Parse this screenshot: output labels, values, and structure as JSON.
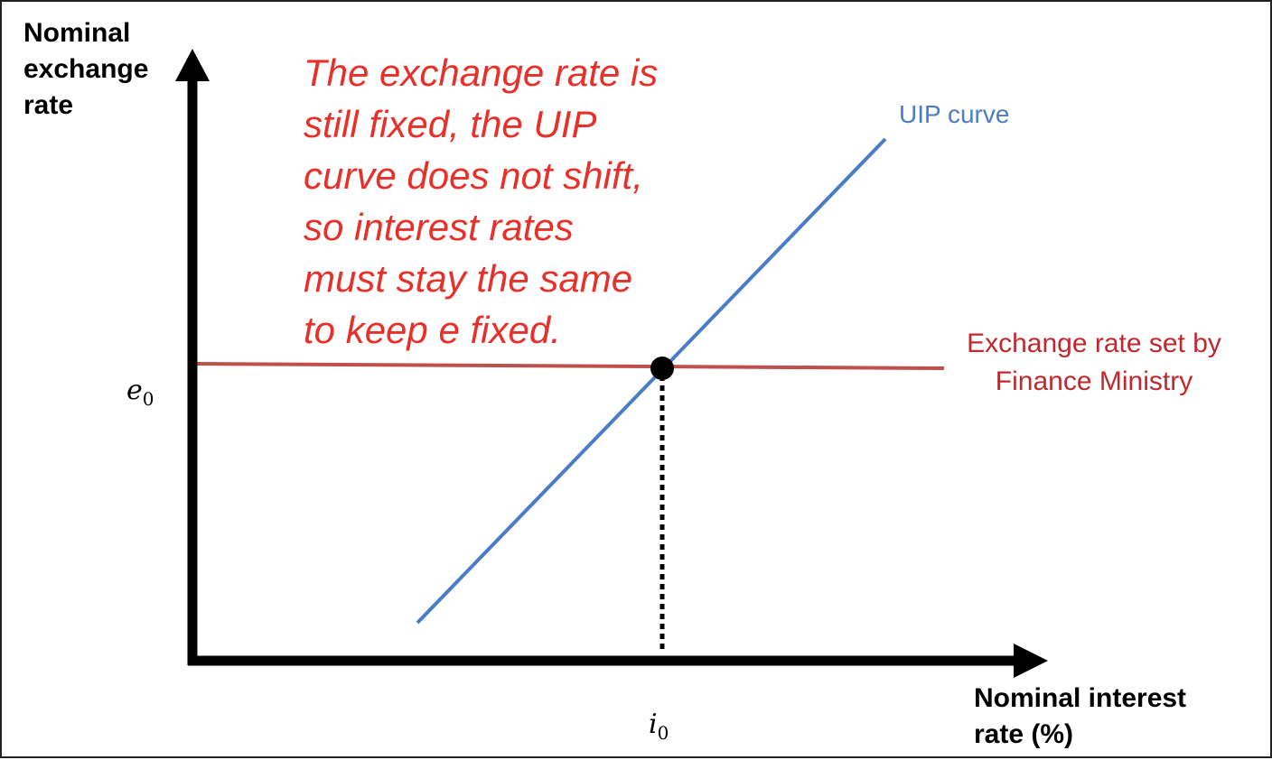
{
  "diagram": {
    "y_axis_title": "Nominal\nexchange\nrate",
    "x_axis_title": "Nominal interest\nrate (%)",
    "y_tick": {
      "base": "e",
      "sub": "0"
    },
    "x_tick": {
      "base": "i",
      "sub": "0"
    },
    "annotation": "The exchange rate is\nstill fixed, the UIP\ncurve does not shift,\nso interest rates\nmust stay the same\nto keep e fixed.",
    "uip_curve_label": "UIP curve",
    "fixed_rate_label": "Exchange rate set by\nFinance Ministry",
    "colors": {
      "uip_curve": "#4a7cc7",
      "fixed_rate_line": "#c0504d",
      "fixed_rate_label": "#c0282e",
      "annotation": "#e8302a",
      "uip_label": "#4a7cc7",
      "axes": "#000000"
    }
  }
}
